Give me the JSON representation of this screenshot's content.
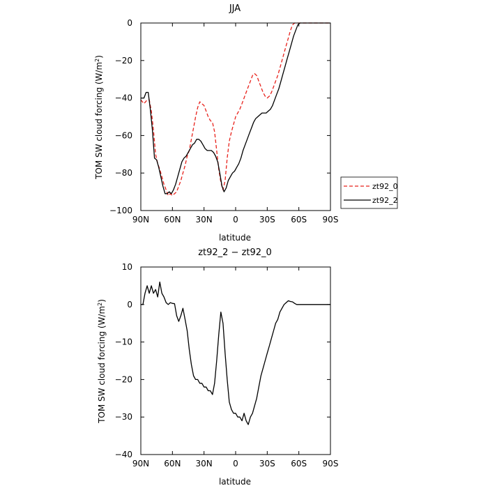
{
  "chart_data": [
    {
      "type": "line",
      "title": "JJA",
      "xlabel": "latitude",
      "ylabel": "TOM SW cloud forcing (W/m²)",
      "ylabel_parts": {
        "base": "TOM SW cloud forcing (W/m",
        "sup": "2",
        "end": ")"
      },
      "xlim": [
        90,
        -90
      ],
      "ylim": [
        -100,
        0
      ],
      "x_ticks": [
        90,
        60,
        30,
        0,
        -30,
        -60,
        -90
      ],
      "x_tick_labels": [
        "90N",
        "60N",
        "30N",
        "0",
        "30S",
        "60S",
        "90S"
      ],
      "y_ticks": [
        0,
        -20,
        -40,
        -60,
        -80,
        -100
      ],
      "y_tick_labels": [
        "0",
        "−20",
        "−40",
        "−60",
        "−80",
        "−100"
      ],
      "legend_position": "right",
      "series": [
        {
          "name": "zt92_0",
          "color": "#e8211b",
          "dash": "dashed",
          "x": [
            90,
            87,
            84,
            82,
            80,
            78,
            76,
            74,
            72,
            70,
            68,
            66,
            64,
            62,
            60,
            58,
            56,
            54,
            52,
            50,
            48,
            46,
            44,
            42,
            40,
            38,
            36,
            34,
            32,
            30,
            28,
            26,
            24,
            22,
            20,
            18,
            16,
            14,
            12,
            10,
            8,
            6,
            4,
            2,
            0,
            -2,
            -4,
            -6,
            -8,
            -10,
            -12,
            -14,
            -16,
            -18,
            -20,
            -22,
            -24,
            -26,
            -28,
            -30,
            -32,
            -34,
            -36,
            -38,
            -40,
            -42,
            -44,
            -46,
            -48,
            -50,
            -52,
            -54,
            -56,
            -58,
            -60,
            -62,
            -64,
            -66,
            -68,
            -70,
            -75,
            -80,
            -85,
            -90
          ],
          "values": [
            -41,
            -43,
            -41,
            -41,
            -47,
            -57,
            -70,
            -75,
            -78,
            -82,
            -86,
            -89,
            -92,
            -91,
            -92,
            -91,
            -90,
            -87,
            -84,
            -80,
            -76,
            -71,
            -68,
            -62,
            -56,
            -50,
            -45,
            -42,
            -43,
            -44,
            -47,
            -50,
            -52,
            -53,
            -58,
            -68,
            -78,
            -85,
            -89,
            -84,
            -72,
            -63,
            -58,
            -54,
            -50,
            -48,
            -46,
            -43,
            -40,
            -37,
            -34,
            -31,
            -28,
            -27,
            -28,
            -31,
            -34,
            -37,
            -39,
            -40,
            -39,
            -37,
            -34,
            -31,
            -28,
            -24,
            -20,
            -16,
            -12,
            -8,
            -4,
            -1,
            0,
            0,
            0,
            0,
            0,
            0,
            0,
            0,
            0,
            0,
            0,
            0
          ]
        },
        {
          "name": "zt92_2",
          "color": "#000000",
          "dash": "solid",
          "x": [
            90,
            87,
            85,
            83,
            81,
            79,
            77,
            75,
            73,
            71,
            69,
            67,
            65,
            63,
            61,
            59,
            57,
            55,
            53,
            51,
            49,
            47,
            45,
            43,
            41,
            39,
            37,
            35,
            33,
            31,
            29,
            27,
            25,
            23,
            21,
            19,
            17,
            15,
            13,
            11,
            9,
            7,
            5,
            3,
            1,
            -1,
            -3,
            -5,
            -7,
            -9,
            -11,
            -13,
            -15,
            -17,
            -19,
            -21,
            -23,
            -25,
            -27,
            -29,
            -31,
            -33,
            -35,
            -37,
            -39,
            -41,
            -43,
            -45,
            -47,
            -49,
            -51,
            -53,
            -55,
            -57,
            -59,
            -61,
            -63,
            -65,
            -67,
            -70,
            -75,
            -80,
            -85,
            -90
          ],
          "values": [
            -40,
            -40,
            -37,
            -37,
            -46,
            -57,
            -72,
            -73,
            -77,
            -82,
            -87,
            -91,
            -91,
            -90,
            -91,
            -89,
            -86,
            -82,
            -78,
            -74,
            -72,
            -71,
            -69,
            -67,
            -65,
            -64,
            -62,
            -62,
            -63,
            -65,
            -67,
            -68,
            -68,
            -68,
            -69,
            -71,
            -74,
            -80,
            -87,
            -90,
            -88,
            -84,
            -82,
            -80,
            -79,
            -77,
            -75,
            -72,
            -68,
            -65,
            -62,
            -59,
            -56,
            -53,
            -51,
            -50,
            -49,
            -48,
            -48,
            -48,
            -47,
            -46,
            -44,
            -41,
            -38,
            -35,
            -31,
            -27,
            -23,
            -19,
            -15,
            -11,
            -7,
            -4,
            -1,
            0,
            0,
            0,
            0,
            0,
            0,
            0,
            0,
            0
          ]
        }
      ]
    },
    {
      "type": "line",
      "title": "zt92_2 − zt92_0",
      "xlabel": "latitude",
      "ylabel": "TOM SW cloud forcing (W/m²)",
      "ylabel_parts": {
        "base": "TOM SW cloud forcing (W/m",
        "sup": "2",
        "end": ")"
      },
      "xlim": [
        90,
        -90
      ],
      "ylim": [
        -40,
        10
      ],
      "x_ticks": [
        90,
        60,
        30,
        0,
        -30,
        -60,
        -90
      ],
      "x_tick_labels": [
        "90N",
        "60N",
        "30N",
        "0",
        "30S",
        "60S",
        "90S"
      ],
      "y_ticks": [
        10,
        0,
        -10,
        -20,
        -30,
        -40
      ],
      "y_tick_labels": [
        "10",
        "0",
        "−10",
        "−20",
        "−30",
        "−40"
      ],
      "series": [
        {
          "color": "#000000",
          "dash": "solid",
          "x": [
            90,
            88,
            86,
            84,
            82,
            80,
            78,
            76,
            74,
            72,
            70,
            68,
            66,
            64,
            62,
            60,
            58,
            56,
            54,
            52,
            50,
            48,
            46,
            44,
            42,
            40,
            38,
            36,
            34,
            32,
            30,
            28,
            26,
            24,
            22,
            20,
            18,
            16,
            14,
            12,
            10,
            8,
            6,
            4,
            2,
            0,
            -2,
            -4,
            -6,
            -8,
            -10,
            -12,
            -14,
            -16,
            -18,
            -20,
            -22,
            -24,
            -26,
            -28,
            -30,
            -32,
            -34,
            -36,
            -38,
            -40,
            -42,
            -44,
            -46,
            -48,
            -50,
            -52,
            -54,
            -56,
            -58,
            -60,
            -62,
            -64,
            -66,
            -68,
            -70,
            -75,
            -80,
            -85,
            -90
          ],
          "values": [
            0,
            0,
            3,
            5,
            3,
            5,
            3,
            4,
            2,
            6,
            3,
            2,
            0.5,
            0,
            0.5,
            0.3,
            0.2,
            -3,
            -4.5,
            -3,
            -1,
            -4,
            -7,
            -12,
            -16,
            -19,
            -20,
            -20,
            -21,
            -21,
            -22,
            -22,
            -23,
            -23,
            -24,
            -21,
            -15,
            -8,
            -2,
            -5,
            -13,
            -20,
            -26,
            -28,
            -29,
            -29,
            -30,
            -30,
            -31,
            -29,
            -31,
            -32,
            -30,
            -29,
            -27,
            -25,
            -22,
            -19,
            -17,
            -15,
            -13,
            -11,
            -9,
            -7,
            -5,
            -4,
            -2,
            -1,
            0,
            0.5,
            1,
            0.8,
            0.7,
            0.3,
            0,
            0,
            0,
            0,
            0,
            0,
            0,
            0,
            0,
            0,
            0
          ]
        }
      ]
    }
  ]
}
